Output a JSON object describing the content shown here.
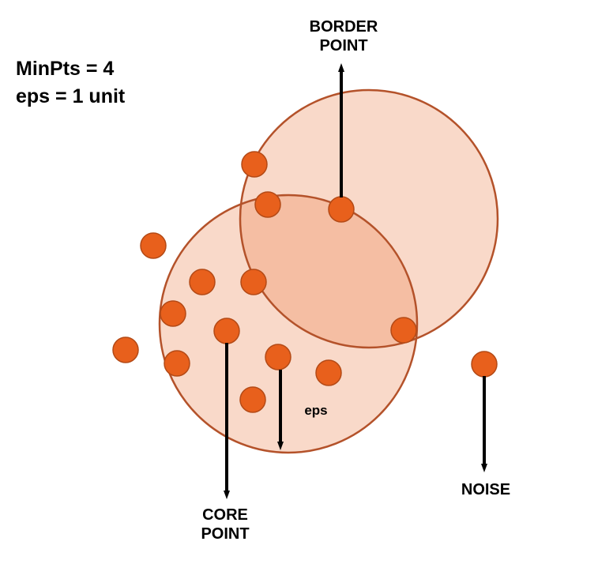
{
  "parameters": {
    "minpts": "MinPts = 4",
    "eps": "eps = 1 unit"
  },
  "labels": {
    "border_point_line1": "BORDER",
    "border_point_line2": "POINT",
    "core_point_line1": "CORE",
    "core_point_line2": "POINT",
    "noise": "NOISE",
    "eps_radius": "eps"
  },
  "colors": {
    "point_fill": "#e8601c",
    "point_stroke": "#b44a16",
    "circle_fill": "#f9d9c9",
    "overlap_fill": "#f5bea3",
    "circle_stroke": "#b4522a",
    "arrow": "#000000"
  }
}
